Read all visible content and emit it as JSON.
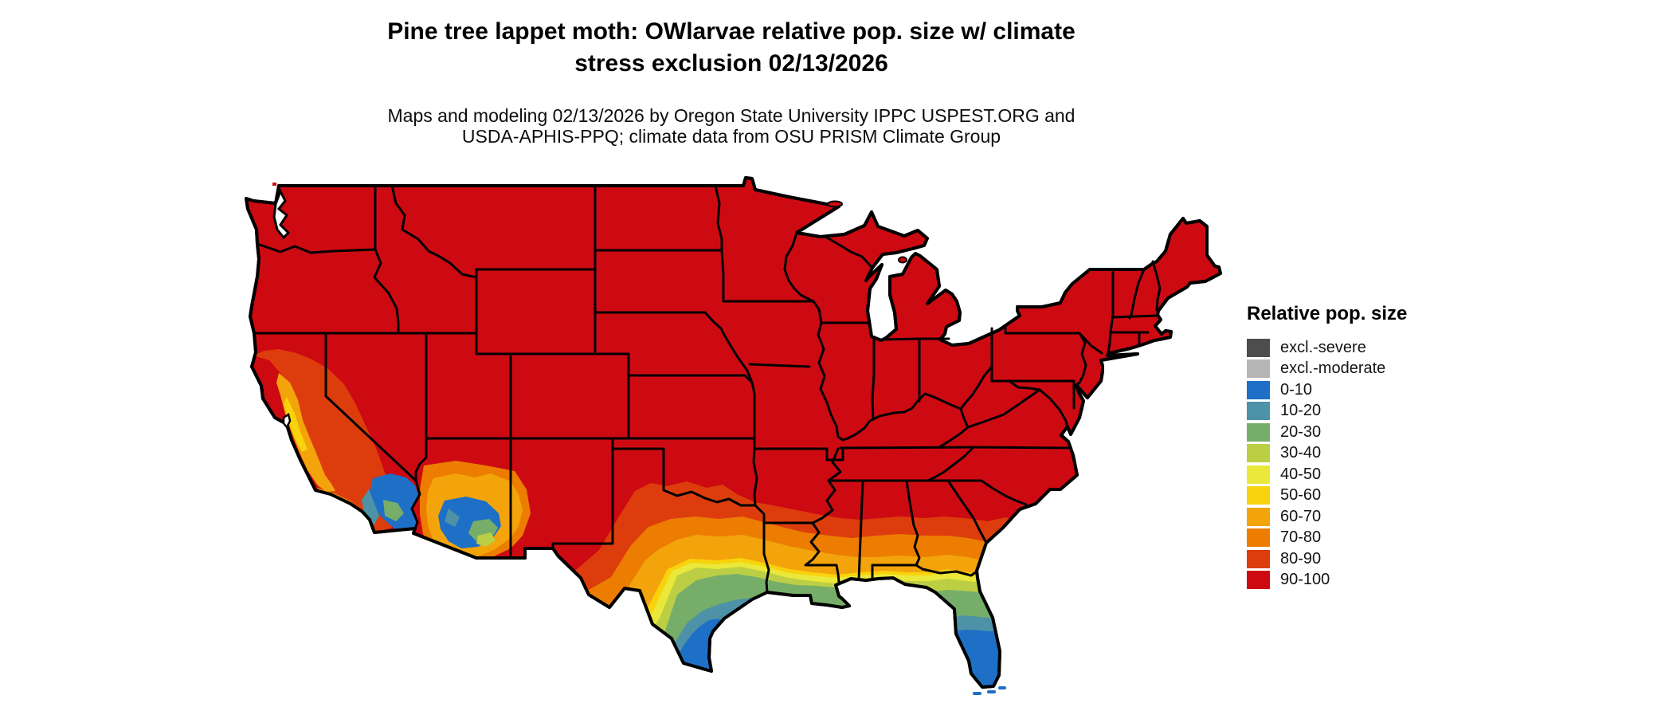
{
  "title": {
    "line1": "Pine tree lappet moth: OWlarvae relative pop. size w/ climate",
    "line2": "stress exclusion 02/13/2026"
  },
  "subtitle": {
    "line1": "Maps and modeling 02/13/2026 by Oregon State University IPPC USPEST.ORG and",
    "line2": "USDA-APHIS-PPQ; climate data from OSU PRISM Climate Group"
  },
  "legend": {
    "title": "Relative pop. size",
    "items": [
      {
        "key": "exclSevere",
        "label": "excl.-severe",
        "color": "#4d4d4d"
      },
      {
        "key": "exclModerate",
        "label": "excl.-moderate",
        "color": "#b5b5b5"
      },
      {
        "key": "b0",
        "label": "0-10",
        "color": "#1d70c6"
      },
      {
        "key": "b10",
        "label": "10-20",
        "color": "#4e92a7"
      },
      {
        "key": "b20",
        "label": "20-30",
        "color": "#76ae69"
      },
      {
        "key": "b30",
        "label": "30-40",
        "color": "#bccf44"
      },
      {
        "key": "b40",
        "label": "40-50",
        "color": "#eae93b"
      },
      {
        "key": "b50",
        "label": "50-60",
        "color": "#f8d30d"
      },
      {
        "key": "b60",
        "label": "60-70",
        "color": "#f3a40b"
      },
      {
        "key": "b70",
        "label": "70-80",
        "color": "#ec7d01"
      },
      {
        "key": "b80",
        "label": "80-90",
        "color": "#dd3d0d"
      },
      {
        "key": "b90",
        "label": "90-100",
        "color": "#cd0a12"
      }
    ]
  },
  "map": {
    "region": "Continental United States",
    "dominant_band": "90-100",
    "border_color": "#000000",
    "water_color": "#ffffff"
  }
}
